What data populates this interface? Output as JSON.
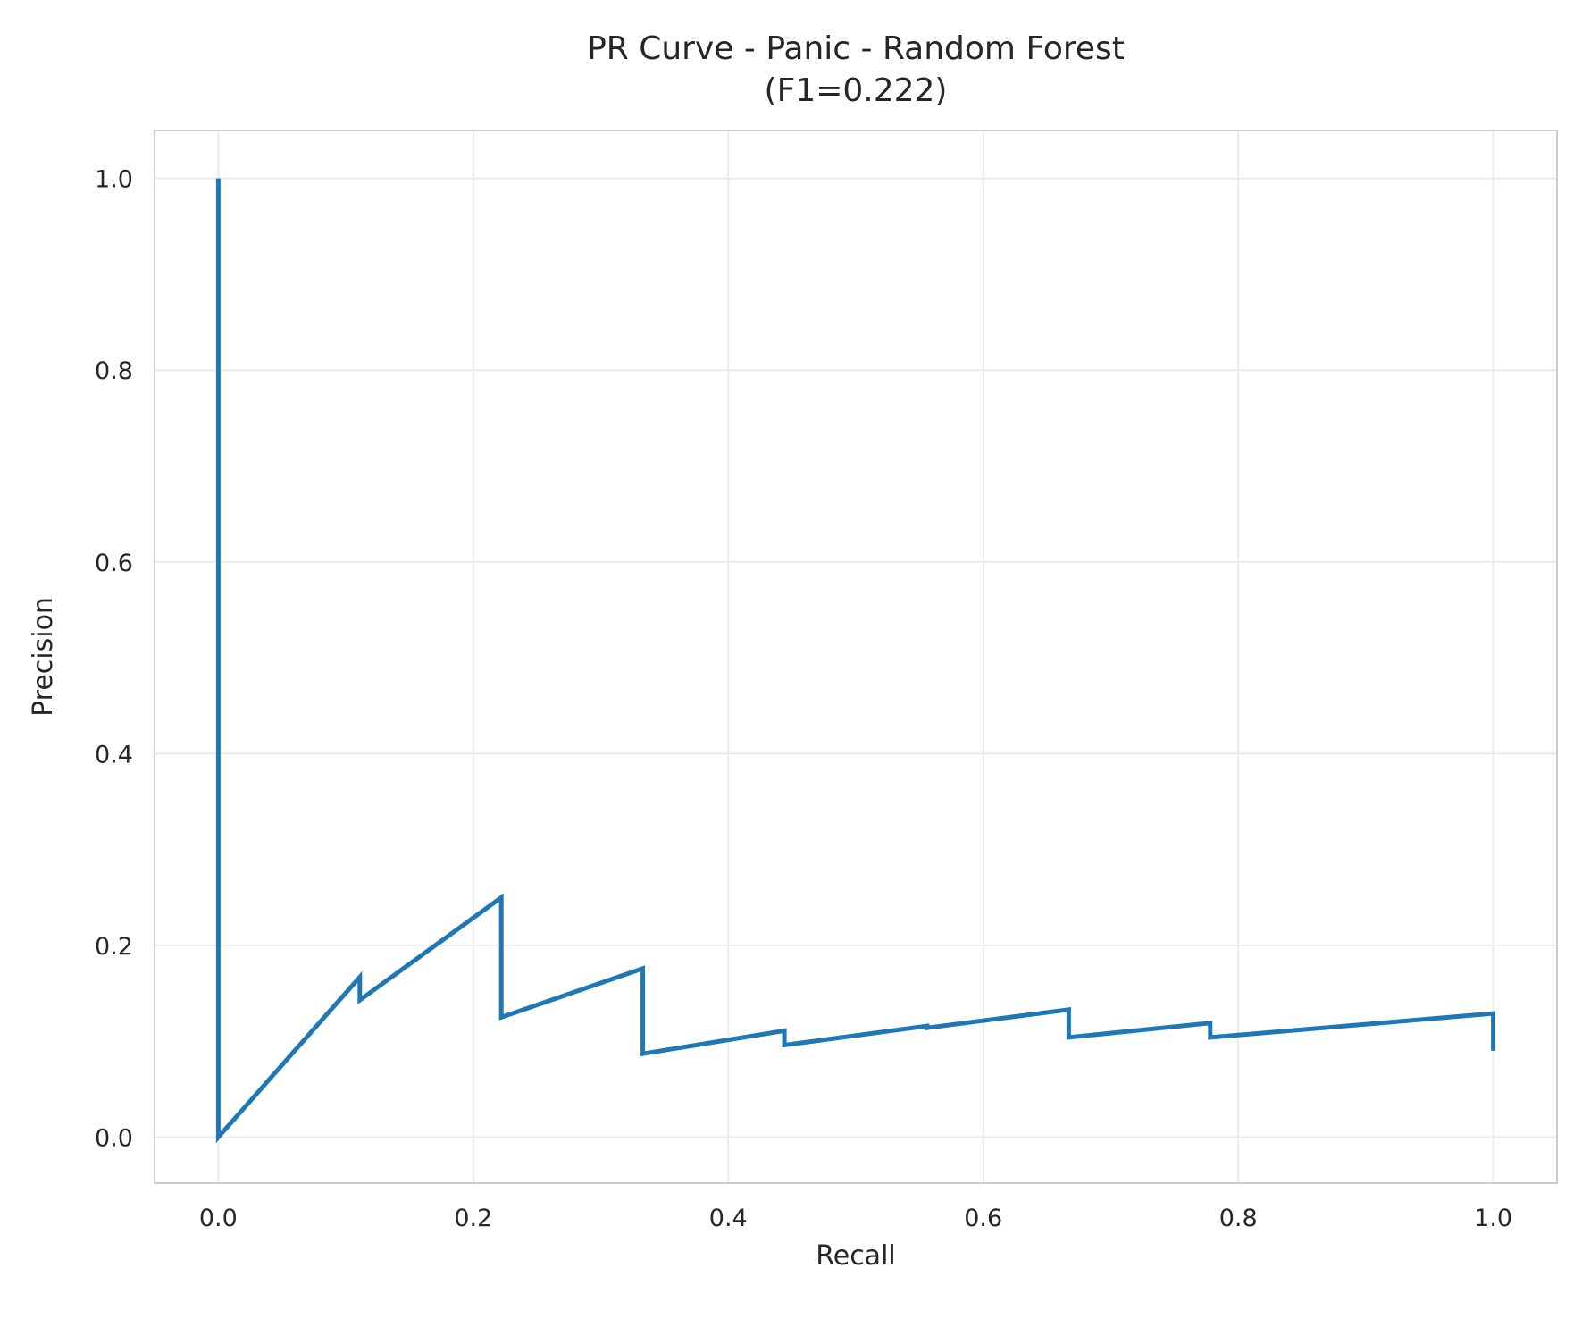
{
  "chart_data": {
    "type": "line",
    "title": "PR Curve - Panic - Random Forest",
    "subtitle": "(F1=0.222)",
    "xlabel": "Recall",
    "ylabel": "Precision",
    "xlim": [
      -0.05,
      1.05
    ],
    "ylim": [
      -0.048,
      1.05
    ],
    "grid": true,
    "x_ticks": [
      0.0,
      0.2,
      0.4,
      0.6,
      0.8,
      1.0
    ],
    "x_tick_labels": [
      "0.0",
      "0.2",
      "0.4",
      "0.6",
      "0.8",
      "1.0"
    ],
    "y_ticks": [
      0.0,
      0.2,
      0.4,
      0.6,
      0.8,
      1.0
    ],
    "y_tick_labels": [
      "0.0",
      "0.2",
      "0.4",
      "0.6",
      "0.8",
      "1.0"
    ],
    "series": [
      {
        "color": "#1f77b4",
        "x": [
          0.0,
          0.0,
          0.111,
          0.111,
          0.222,
          0.222,
          0.333,
          0.333,
          0.444,
          0.444,
          0.556,
          0.556,
          0.667,
          0.667,
          0.778,
          0.778,
          1.0,
          1.0
        ],
        "y": [
          1.0,
          0.0,
          0.167,
          0.143,
          0.25,
          0.125,
          0.176,
          0.087,
          0.111,
          0.096,
          0.116,
          0.114,
          0.133,
          0.104,
          0.119,
          0.104,
          0.129,
          0.09
        ]
      }
    ]
  }
}
